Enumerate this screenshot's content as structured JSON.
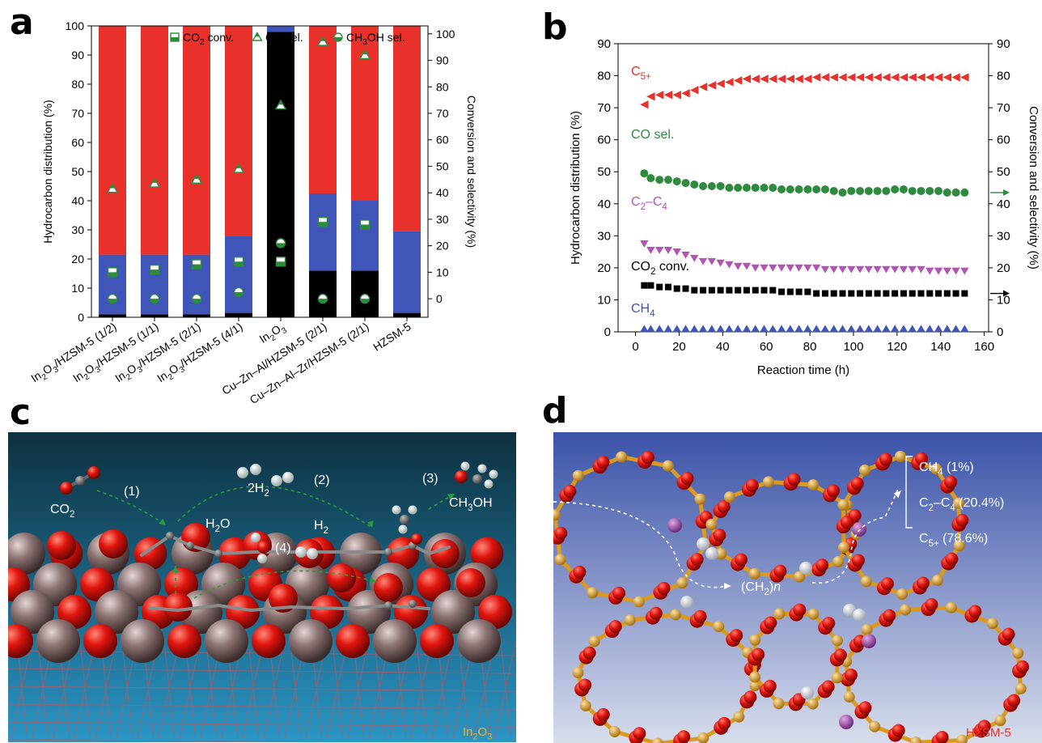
{
  "panels": [
    {
      "letter": "a"
    },
    {
      "letter": "b"
    },
    {
      "letter": "c"
    },
    {
      "letter": "d"
    }
  ],
  "colors": {
    "red": "#e8312a",
    "blue": "#3f55b8",
    "black": "#000000",
    "green": "#2e8b3d",
    "purple": "#b254b3",
    "arrow_green": "#2e9a3f",
    "scene_c_top": "#0d3140",
    "scene_c_bottom": "#2a95c4",
    "scene_d_top": "#3a52a8",
    "scene_d_bottom": "#d7ddeb",
    "oxygen": "#e0150f",
    "indium": "#8c7474",
    "silicon": "#e8a82a",
    "aluminum": "#9b4ca6"
  },
  "chart_data": [
    {
      "panel": "a",
      "type": "bar",
      "stacked": true,
      "categories": [
        {
          "pre": "In",
          "sub": "2",
          "mid": "O",
          "sub2": "3",
          "post": "/HZSM-5 (1/2)"
        },
        {
          "pre": "In",
          "sub": "2",
          "mid": "O",
          "sub2": "3",
          "post": "/HZSM-5 (1/1)"
        },
        {
          "pre": "In",
          "sub": "2",
          "mid": "O",
          "sub2": "3",
          "post": "/HZSM-5 (2/1)"
        },
        {
          "pre": "In",
          "sub": "2",
          "mid": "O",
          "sub2": "3",
          "post": "/HZSM-5 (4/1)"
        },
        {
          "pre": "In",
          "sub": "2",
          "mid": "O",
          "sub2": "3",
          "post": ""
        },
        {
          "pre": "Cu–Zn–Al/HZSM-5 (2/1)",
          "sub": "",
          "mid": "",
          "sub2": "",
          "post": ""
        },
        {
          "pre": "Cu–Zn–Al–Zr/HZSM-5 (2/1)",
          "sub": "",
          "mid": "",
          "sub2": "",
          "post": ""
        },
        {
          "pre": "HZSM-5",
          "sub": "",
          "mid": "",
          "sub2": "",
          "post": ""
        }
      ],
      "stack_series": [
        {
          "color_key": "black",
          "values": [
            1,
            1,
            1,
            1.5,
            98,
            16,
            16,
            1.5
          ]
        },
        {
          "color_key": "blue",
          "values": [
            20.5,
            20.5,
            20.5,
            26.5,
            2,
            26.5,
            24,
            28
          ]
        },
        {
          "color_key": "red",
          "values": [
            78.5,
            78.5,
            78.5,
            72,
            0,
            57.5,
            60,
            70.5
          ]
        }
      ],
      "marker_series": [
        {
          "name": "CO",
          "name_sub": "2",
          "name_post": " conv.",
          "marker": "square-half",
          "values": [
            10,
            11,
            13,
            14,
            14,
            29,
            28,
            null
          ]
        },
        {
          "name": "CO sel.",
          "name_sub": "",
          "name_post": "",
          "marker": "triangle-half",
          "values": [
            41.5,
            43.5,
            45,
            49,
            73,
            97,
            92,
            null
          ]
        },
        {
          "name": "CH",
          "name_sub": "3",
          "name_post": "OH sel.",
          "marker": "circle-half",
          "values": [
            0,
            0,
            0,
            2.5,
            21,
            0,
            0,
            null
          ]
        }
      ],
      "ylabel": "Hydrocarbon distribution (%)",
      "ylabel_right": "Conversion and selectivity (%)",
      "ylim": [
        0,
        100
      ],
      "ylim_right": [
        -7,
        103
      ],
      "yticks": [
        0,
        10,
        20,
        30,
        40,
        50,
        60,
        70,
        80,
        90,
        100
      ],
      "yticks_right": [
        0,
        10,
        20,
        30,
        40,
        50,
        60,
        70,
        80,
        90,
        100
      ],
      "legend_placement": "top"
    },
    {
      "panel": "b",
      "type": "scatter",
      "x_label": "Reaction time (h)",
      "ylabel": "Hydrocarbon distribution (%)",
      "ylabel_right": "Conversion and selectivity (%)",
      "xlim": [
        -8,
        162
      ],
      "ylim": [
        0,
        90
      ],
      "xticks": [
        0,
        20,
        40,
        60,
        80,
        100,
        120,
        140,
        160
      ],
      "yticks": [
        0,
        10,
        20,
        30,
        40,
        50,
        60,
        70,
        80,
        90
      ],
      "yticks_right": [
        0,
        10,
        20,
        30,
        40,
        50,
        60,
        70,
        80,
        90
      ],
      "series": [
        {
          "name": "C",
          "name_sub": "5+",
          "color_key": "red",
          "marker": "triangle-left",
          "x": [
            4,
            7,
            11,
            15,
            19,
            23,
            27,
            31,
            35,
            39,
            43,
            47,
            51,
            55,
            59,
            63,
            67,
            71,
            75,
            79,
            83,
            87,
            91,
            95,
            99,
            103,
            107,
            111,
            115,
            119,
            123,
            127,
            131,
            135,
            139,
            143,
            147,
            151
          ],
          "y": [
            71,
            73.5,
            74,
            74,
            74,
            74.5,
            75.5,
            76.5,
            77,
            77.5,
            78,
            78.5,
            79,
            79,
            79,
            79,
            79,
            79,
            79,
            79,
            79.5,
            79.5,
            79.5,
            79.5,
            79.5,
            79.5,
            79.5,
            79.5,
            79.5,
            79.5,
            79.5,
            79.5,
            79.5,
            79.5,
            79.5,
            79.5,
            79.5,
            79.5
          ]
        },
        {
          "name": "CO sel.",
          "name_sub": "",
          "color_key": "green",
          "marker": "circle",
          "axis": "right",
          "x": [
            4,
            7,
            11,
            15,
            19,
            23,
            27,
            31,
            35,
            39,
            43,
            47,
            51,
            55,
            59,
            63,
            67,
            71,
            75,
            79,
            83,
            87,
            91,
            95,
            99,
            103,
            107,
            111,
            115,
            119,
            123,
            127,
            131,
            135,
            139,
            143,
            147,
            151
          ],
          "y": [
            49.5,
            48,
            47.5,
            47.5,
            47,
            46.5,
            46,
            45.5,
            45.5,
            45.5,
            45,
            45,
            45,
            45,
            45,
            45,
            44.5,
            44.5,
            44.5,
            44.5,
            44.5,
            44.5,
            44,
            43.5,
            44,
            44,
            44,
            44,
            44,
            44.5,
            44.5,
            44,
            44,
            44,
            44,
            43.5,
            43.5,
            43.5
          ]
        },
        {
          "name": "C",
          "name_sub": "2",
          "name_post": "–C",
          "name_sub2": "4",
          "color_key": "purple",
          "marker": "triangle-down",
          "x": [
            4,
            7,
            11,
            15,
            19,
            23,
            27,
            31,
            35,
            39,
            43,
            47,
            51,
            55,
            59,
            63,
            67,
            71,
            75,
            79,
            83,
            87,
            91,
            95,
            99,
            103,
            107,
            111,
            115,
            119,
            123,
            127,
            131,
            135,
            139,
            143,
            147,
            151
          ],
          "y": [
            27.5,
            25.5,
            25.5,
            25.5,
            25,
            24,
            23,
            22,
            22,
            21.5,
            21,
            20.5,
            20.5,
            20,
            20,
            20,
            20,
            20,
            20,
            20,
            20,
            19.5,
            19.5,
            19.5,
            19.5,
            19.5,
            19.5,
            19.5,
            19.5,
            19.5,
            19.5,
            19.5,
            19.5,
            19,
            19,
            19,
            19,
            19
          ]
        },
        {
          "name": "CO",
          "name_sub": "2",
          "name_post": " conv.",
          "color_key": "black",
          "marker": "square",
          "axis": "right",
          "x": [
            4,
            7,
            11,
            15,
            19,
            23,
            27,
            31,
            35,
            39,
            43,
            47,
            51,
            55,
            59,
            63,
            67,
            71,
            75,
            79,
            83,
            87,
            91,
            95,
            99,
            103,
            107,
            111,
            115,
            119,
            123,
            127,
            131,
            135,
            139,
            143,
            147,
            151
          ],
          "y": [
            14.5,
            14.5,
            14,
            14,
            13.5,
            13.5,
            13,
            13,
            13,
            13,
            13,
            13,
            13,
            13,
            13,
            13,
            12.5,
            12.5,
            12.5,
            12.5,
            12,
            12,
            12,
            12,
            12,
            12,
            12,
            12,
            12,
            12,
            12,
            12,
            12,
            12,
            12,
            12,
            12,
            12
          ]
        },
        {
          "name": "CH",
          "name_sub": "4",
          "color_key": "blue",
          "marker": "triangle-up",
          "x": [
            4,
            7,
            11,
            15,
            19,
            23,
            27,
            31,
            35,
            39,
            43,
            47,
            51,
            55,
            59,
            63,
            67,
            71,
            75,
            79,
            83,
            87,
            91,
            95,
            99,
            103,
            107,
            111,
            115,
            119,
            123,
            127,
            131,
            135,
            139,
            143,
            147,
            151
          ],
          "y": [
            1,
            1,
            1,
            1,
            1,
            1,
            1,
            1,
            1,
            1,
            1,
            1,
            1,
            1,
            1,
            1,
            1,
            1,
            1,
            1,
            1,
            1,
            1,
            1,
            1,
            1,
            1,
            1,
            1,
            1,
            1,
            1,
            1,
            1,
            1,
            1,
            1,
            1
          ]
        }
      ]
    }
  ],
  "panel_c": {
    "labels": [
      {
        "key": "step1",
        "text": "(1)"
      },
      {
        "key": "step2",
        "text": "(2)"
      },
      {
        "key": "step3",
        "text": "(3)"
      },
      {
        "key": "step4",
        "text": "(4)"
      },
      {
        "key": "co2",
        "pre": "CO",
        "sub": "2",
        "post": ""
      },
      {
        "key": "h2_2",
        "pre": "2H",
        "sub": "2",
        "post": ""
      },
      {
        "key": "h2o",
        "pre": "H",
        "sub": "2",
        "post": "O"
      },
      {
        "key": "h2",
        "pre": "H",
        "sub": "2",
        "post": ""
      },
      {
        "key": "ch3oh",
        "pre": "CH",
        "sub": "3",
        "post": "OH"
      }
    ],
    "corner": {
      "pre": "In",
      "sub": "2",
      "mid": "O",
      "sub2": "3"
    }
  },
  "panel_d": {
    "products": [
      {
        "pre": "CH",
        "sub": "4",
        "post": " (1%)"
      },
      {
        "pre": "C",
        "sub": "2",
        "post": "–C",
        "sub2": "4",
        "post2": " (20.4%)"
      },
      {
        "pre": "C",
        "sub": "5+",
        "post": " (78.6%)"
      }
    ],
    "intermediate": {
      "pre": "(CH",
      "sub": "2",
      "post": ")",
      "italic": "n"
    },
    "corner": "HZSM-5"
  }
}
